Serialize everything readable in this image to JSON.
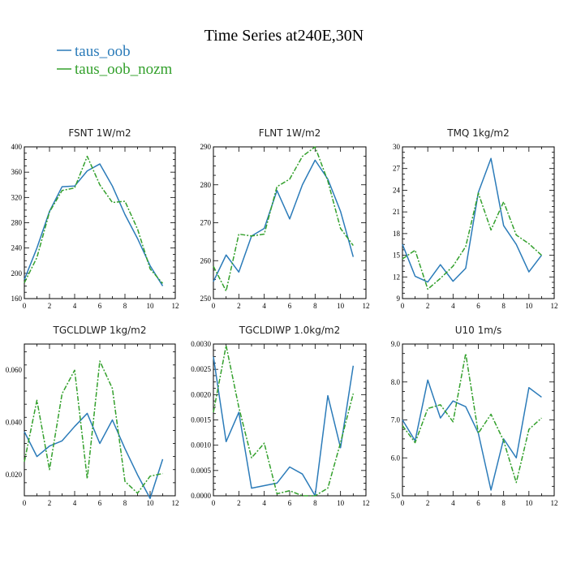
{
  "figure": {
    "title": "Time Series at240E,30N",
    "series_names": [
      "taus_oob",
      "taus_oob_nozm"
    ],
    "series_colors": [
      "#2b7bb9",
      "#33a02c"
    ]
  },
  "chart_data": [
    {
      "type": "line",
      "title": "FSNT   1W/m2",
      "x": [
        0,
        1,
        2,
        3,
        4,
        5,
        6,
        7,
        8,
        9,
        10,
        11
      ],
      "xlim": [
        0,
        12
      ],
      "xticks": [
        0,
        2,
        4,
        6,
        8,
        10,
        12
      ],
      "ylim": [
        160,
        400
      ],
      "yticks": [
        160,
        200,
        240,
        280,
        320,
        360,
        400
      ],
      "ytick_labels": [
        "160",
        "200",
        "240",
        "280",
        "320",
        "360",
        "400"
      ],
      "series": [
        {
          "name": "taus_oob",
          "values": [
            190,
            240,
            298,
            337,
            338,
            362,
            373,
            338,
            293,
            255,
            212,
            180
          ]
        },
        {
          "name": "taus_oob_nozm",
          "values": [
            185,
            225,
            297,
            331,
            335,
            385,
            340,
            312,
            314,
            270,
            207,
            184
          ]
        }
      ]
    },
    {
      "type": "line",
      "title": "FLNT   1W/m2",
      "x": [
        0,
        1,
        2,
        3,
        4,
        5,
        6,
        7,
        8,
        9,
        10,
        11
      ],
      "xlim": [
        0,
        12
      ],
      "xticks": [
        0,
        2,
        4,
        6,
        8,
        10,
        12
      ],
      "ylim": [
        250,
        290
      ],
      "yticks": [
        250,
        260,
        270,
        280,
        290
      ],
      "ytick_labels": [
        "250",
        "260",
        "270",
        "280",
        "290"
      ],
      "series": [
        {
          "name": "taus_oob",
          "values": [
            254.5,
            261.5,
            257.0,
            266.5,
            268.5,
            278.5,
            271.0,
            280.0,
            286.5,
            281.5,
            273.0,
            261.0
          ]
        },
        {
          "name": "taus_oob_nozm",
          "values": [
            258.5,
            252.0,
            267.0,
            266.5,
            267.0,
            279.5,
            281.5,
            287.5,
            290.0,
            281.0,
            268.5,
            264.0
          ]
        }
      ]
    },
    {
      "type": "line",
      "title": "TMQ   1kg/m2",
      "x": [
        0,
        1,
        2,
        3,
        4,
        5,
        6,
        7,
        8,
        9,
        10,
        11
      ],
      "xlim": [
        0,
        12
      ],
      "xticks": [
        0,
        2,
        4,
        6,
        8,
        10,
        12
      ],
      "ylim": [
        9,
        30
      ],
      "yticks": [
        9,
        12,
        15,
        18,
        21,
        24,
        27,
        30
      ],
      "ytick_labels": [
        "9",
        "12",
        "15",
        "18",
        "21",
        "24",
        "27",
        "30"
      ],
      "series": [
        {
          "name": "taus_oob",
          "values": [
            16.5,
            12.1,
            11.3,
            13.7,
            11.4,
            13.2,
            23.7,
            28.4,
            19.1,
            16.5,
            12.7,
            15.0
          ]
        },
        {
          "name": "taus_oob_nozm",
          "values": [
            14.5,
            15.7,
            10.3,
            11.8,
            13.5,
            16.2,
            23.6,
            18.5,
            22.4,
            17.8,
            16.6,
            15.0
          ]
        }
      ]
    },
    {
      "type": "line",
      "title": "TGCLDLWP   1kg/m2",
      "x": [
        0,
        1,
        2,
        3,
        4,
        5,
        6,
        7,
        8,
        9,
        10,
        11
      ],
      "xlim": [
        0,
        12
      ],
      "xticks": [
        0,
        2,
        4,
        6,
        8,
        10,
        12
      ],
      "ylim": [
        0.012,
        0.07
      ],
      "yticks": [
        0.02,
        0.04,
        0.06
      ],
      "ytick_labels": [
        "0.020",
        "0.040",
        "0.060"
      ],
      "series": [
        {
          "name": "taus_oob",
          "values": [
            0.0365,
            0.027,
            0.031,
            0.033,
            0.0385,
            0.0435,
            0.032,
            0.041,
            0.03,
            0.02,
            0.011,
            0.026
          ]
        },
        {
          "name": "taus_oob_nozm",
          "values": [
            0.025,
            0.0485,
            0.022,
            0.051,
            0.06,
            0.0185,
            0.0635,
            0.053,
            0.0175,
            0.013,
            0.0195,
            0.0205
          ]
        }
      ]
    },
    {
      "type": "line",
      "title": "TGCLDIWP   1.0kg/m2",
      "x": [
        0,
        1,
        2,
        3,
        4,
        5,
        6,
        7,
        8,
        9,
        10,
        11
      ],
      "xlim": [
        0,
        12
      ],
      "xticks": [
        0,
        2,
        4,
        6,
        8,
        10,
        12
      ],
      "ylim": [
        0,
        0.003
      ],
      "yticks": [
        0,
        0.0005,
        0.001,
        0.0015,
        0.002,
        0.0025,
        0.003
      ],
      "ytick_labels": [
        "0.0000",
        "0.0005",
        "0.0010",
        "0.0015",
        "0.0020",
        "0.0025",
        "0.0030"
      ],
      "series": [
        {
          "name": "taus_oob",
          "values": [
            0.00275,
            0.00107,
            0.00165,
            0.00015,
            0.0002,
            0.00025,
            0.00057,
            0.00043,
            0.0,
            0.00198,
            0.00095,
            0.00257
          ]
        },
        {
          "name": "taus_oob_nozm",
          "values": [
            0.00165,
            0.00297,
            0.00175,
            0.00075,
            0.00104,
            4e-05,
            0.0001,
            0.0,
            0.0,
            0.00015,
            0.00105,
            0.00202
          ]
        }
      ]
    },
    {
      "type": "line",
      "title": "U10   1m/s",
      "x": [
        0,
        1,
        2,
        3,
        4,
        5,
        6,
        7,
        8,
        9,
        10,
        11
      ],
      "xlim": [
        0,
        12
      ],
      "xticks": [
        0,
        2,
        4,
        6,
        8,
        10,
        12
      ],
      "ylim": [
        5.0,
        9.0
      ],
      "yticks": [
        5.0,
        6.0,
        7.0,
        8.0,
        9.0
      ],
      "ytick_labels": [
        "5.0",
        "6.0",
        "7.0",
        "8.0",
        "9.0"
      ],
      "series": [
        {
          "name": "taus_oob",
          "values": [
            7.0,
            6.45,
            8.05,
            7.05,
            7.5,
            7.35,
            6.65,
            5.15,
            6.5,
            6.0,
            7.85,
            7.6
          ]
        },
        {
          "name": "taus_oob_nozm",
          "values": [
            6.85,
            6.4,
            7.3,
            7.4,
            6.95,
            8.75,
            6.65,
            7.15,
            6.45,
            5.35,
            6.75,
            7.05
          ]
        }
      ]
    }
  ]
}
